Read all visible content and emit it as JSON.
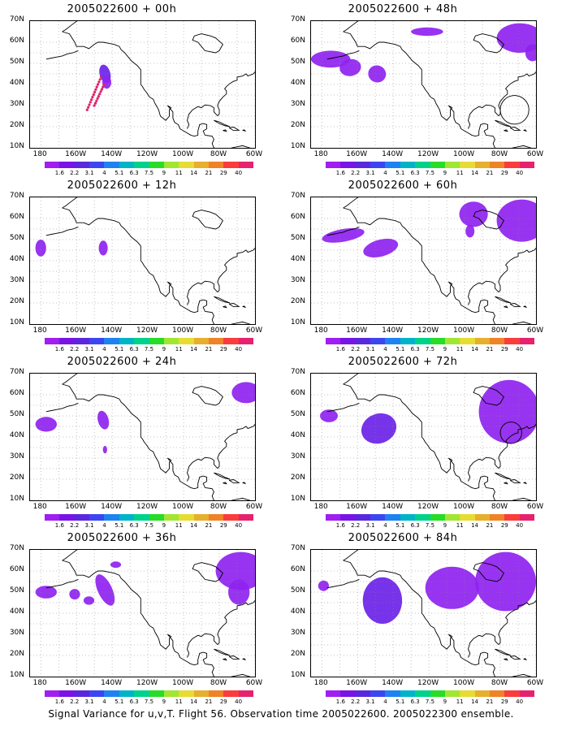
{
  "caption": "Signal Variance for u,v,T. Flight 56. Observation time 2005022600. 2005022300 ensemble.",
  "panels": [
    {
      "title": "2005022600 + 00h"
    },
    {
      "title": "2005022600 + 48h"
    },
    {
      "title": "2005022600 + 12h"
    },
    {
      "title": "2005022600 + 60h"
    },
    {
      "title": "2005022600 + 24h"
    },
    {
      "title": "2005022600 + 72h"
    },
    {
      "title": "2005022600 + 36h"
    },
    {
      "title": "2005022600 + 84h"
    }
  ],
  "lat_labels": [
    "70N",
    "60N",
    "50N",
    "40N",
    "30N",
    "20N",
    "10N"
  ],
  "lon_labels": [
    "180",
    "160W",
    "140W",
    "120W",
    "100W",
    "80W",
    "60W"
  ],
  "colorbar": {
    "labels": [
      "1.6",
      "2.2",
      "3.1",
      "4",
      "5.1",
      "6.3",
      "7.5",
      "9",
      "11",
      "14",
      "21",
      "29",
      "40"
    ],
    "colors": [
      "#a01ef0",
      "#7814e6",
      "#5a28dc",
      "#3c46f0",
      "#1e82f0",
      "#00b4c8",
      "#00d28c",
      "#28dc28",
      "#a0e632",
      "#e6dc32",
      "#e6af2d",
      "#f08228",
      "#fa3c3c",
      "#e6226e"
    ]
  },
  "variance_color": "#8f22f0",
  "variance_deep_color": "#6a22e8",
  "track_color": "#e0206a"
}
